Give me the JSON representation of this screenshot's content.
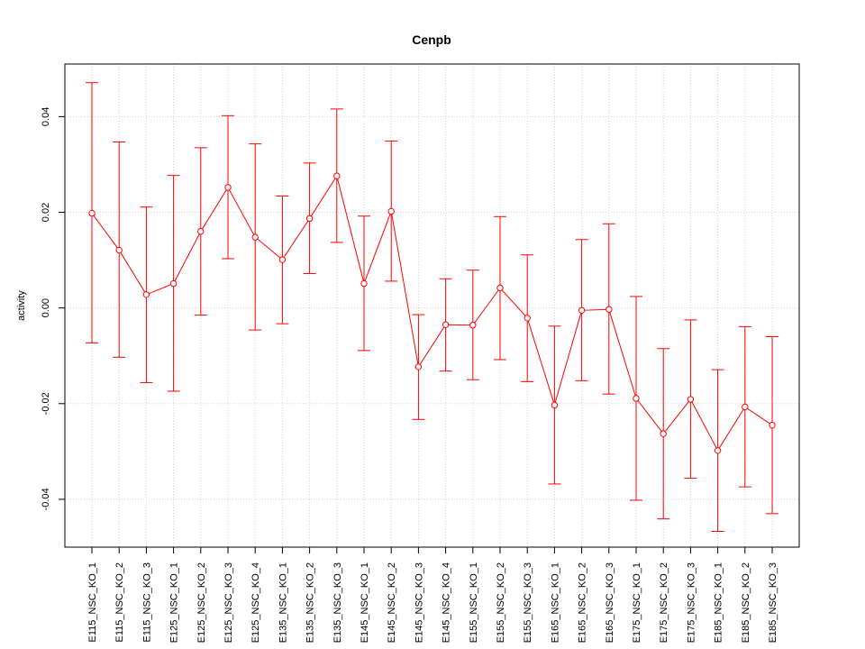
{
  "chart_data": {
    "type": "line",
    "title": "Cenpb",
    "xlabel": "",
    "ylabel": "activity",
    "ylim": [
      -0.05,
      0.051
    ],
    "yticks": [
      -0.04,
      -0.02,
      0.0,
      0.02,
      0.04
    ],
    "ytick_labels": [
      "-0.04",
      "-0.02",
      "0.00",
      "0.02",
      "0.04"
    ],
    "grid": true,
    "series_color": "#ff0000",
    "grid_color": "#d3d3d3",
    "categories": [
      "E115_NSC_KO_1",
      "E115_NSC_KO_2",
      "E115_NSC_KO_3",
      "E125_NSC_KO_1",
      "E125_NSC_KO_2",
      "E125_NSC_KO_3",
      "E125_NSC_KO_4",
      "E135_NSC_KO_1",
      "E135_NSC_KO_2",
      "E135_NSC_KO_3",
      "E145_NSC_KO_1",
      "E145_NSC_KO_2",
      "E145_NSC_KO_3",
      "E145_NSC_KO_4",
      "E155_NSC_KO_1",
      "E155_NSC_KO_2",
      "E155_NSC_KO_3",
      "E165_NSC_KO_1",
      "E165_NSC_KO_2",
      "E165_NSC_KO_3",
      "E175_NSC_KO_1",
      "E175_NSC_KO_2",
      "E175_NSC_KO_3",
      "E185_NSC_KO_1",
      "E185_NSC_KO_2",
      "E185_NSC_KO_3"
    ],
    "values": [
      0.0198,
      0.0121,
      0.0028,
      0.0051,
      0.016,
      0.0252,
      0.0148,
      0.0101,
      0.0187,
      0.0276,
      0.0051,
      0.0202,
      -0.0123,
      -0.0035,
      -0.0036,
      0.0042,
      -0.0021,
      -0.0203,
      -0.0005,
      -0.0003,
      -0.0189,
      -0.0263,
      -0.0191,
      -0.0298,
      -0.0207,
      -0.0245
    ],
    "upper": [
      0.0471,
      0.0347,
      0.0211,
      0.0277,
      0.0335,
      0.0402,
      0.0343,
      0.0234,
      0.0303,
      0.0416,
      0.0192,
      0.0349,
      -0.0014,
      0.0061,
      0.0079,
      0.0191,
      0.0111,
      -0.0038,
      0.0143,
      0.0176,
      0.0024,
      -0.0085,
      -0.0025,
      -0.0129,
      -0.0039,
      -0.006
    ],
    "lower": [
      -0.0073,
      -0.0103,
      -0.0156,
      -0.0174,
      -0.0015,
      0.0103,
      -0.0046,
      -0.0033,
      0.0072,
      0.0137,
      -0.0089,
      0.0056,
      -0.0233,
      -0.0132,
      -0.015,
      -0.0108,
      -0.0154,
      -0.0368,
      -0.0152,
      -0.018,
      -0.0402,
      -0.0441,
      -0.0356,
      -0.0467,
      -0.0374,
      -0.043
    ]
  }
}
